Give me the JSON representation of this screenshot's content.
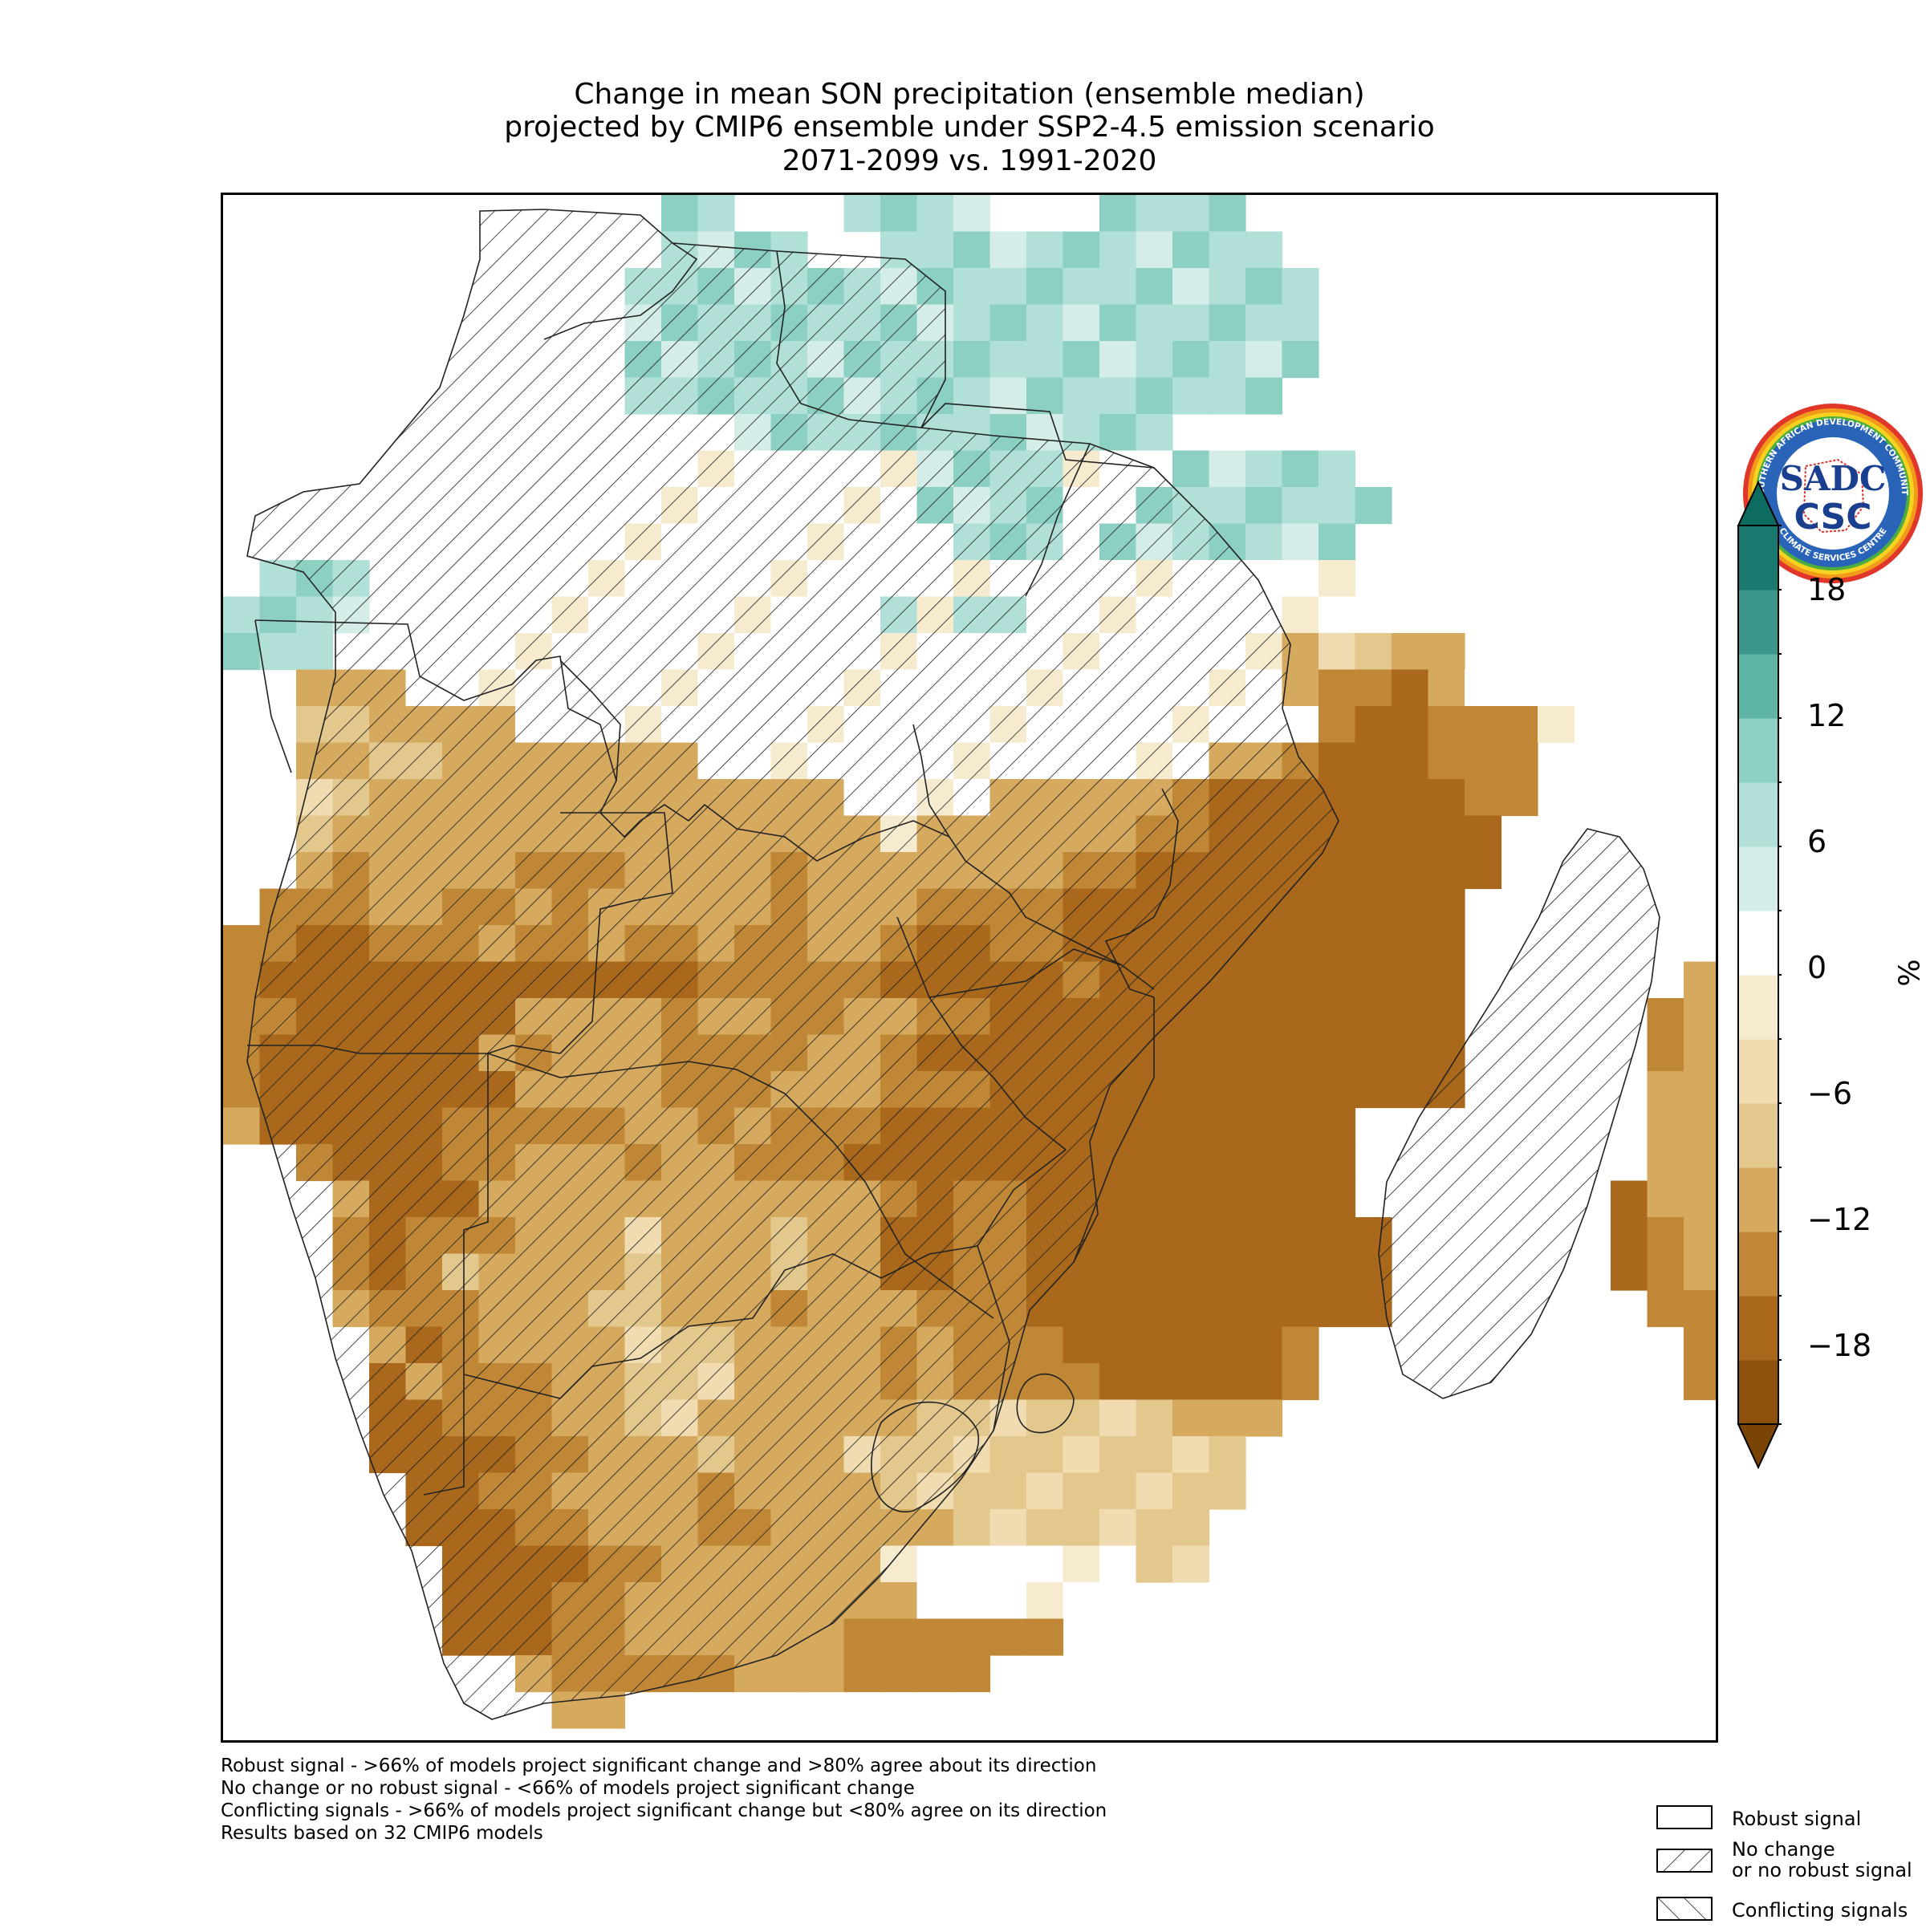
{
  "title": {
    "line1": "Change in mean SON precipitation (ensemble median)",
    "line2": "projected by CMIP6 ensemble under SSP2-4.5 emission scenario",
    "line3": "2071-2099 vs. 1991-2020"
  },
  "colorbar": {
    "unit": "%",
    "ticks": [
      "18",
      "12",
      "6",
      "0",
      "−6",
      "−12",
      "−18"
    ],
    "levels": [
      -21,
      -18,
      -15,
      -12,
      -9,
      -6,
      -3,
      3,
      6,
      9,
      12,
      15,
      18,
      21
    ],
    "colors": [
      "#8c510a",
      "#a9681c",
      "#c08836",
      "#d5aa5f",
      "#e3c88e",
      "#f0dcb0",
      "#f6ebcf",
      "#ffffff",
      "#d4ede9",
      "#b0e0d8",
      "#8bd0c3",
      "#5fb4a8",
      "#3d968b",
      "#1a7a70"
    ],
    "extend_low_color": "#7a4405",
    "extend_high_color": "#0d6b60"
  },
  "legend": {
    "robust": "Robust signal",
    "no_change_1": "No change",
    "no_change_2": "or no robust signal",
    "conflicting": "Conflicting signals"
  },
  "footnotes": {
    "line1": "Robust signal - >66% of models project significant change and >80% agree about its direction",
    "line2": "No change or no robust signal - <66% of models project significant change",
    "line3": "Conflicting signals - >66% of models project significant change but <80% agree on its direction",
    "line4": "Results based on 32 CMIP6 models"
  },
  "logo": {
    "outer_text": "SOUTHERN AFRICAN DEVELOPMENT COMMUNITY",
    "inner_text": "CLIMATE SERVICES CENTRE",
    "top_letters": "SADC",
    "bottom_letters": "CSC"
  },
  "map_data": {
    "grid_rows": [
      "............RR...RRRR...RRRR.........",
      "............RRRR..RRRRRRRRRRR.........",
      "...........RRRRRRRRRRRRRRRRRRR........",
      "...........RRRRRRRRRRRRRRRRRRR........",
      "...........RRRRRRRRRRRRRRRRRRR........",
      "...........RRRRRRRRRRRRRRRRRR.........",
      "..............RRRRRRRRRRRR............",
      "............0000000RRRR000RRRRR.......",
      "..........000000000RRRR00RRRRRRR......",
      "...........000000000RRR0RRRRRRR.......",
      ".RRR....00000000000000000000000.......",
      "RRRR..000000000000R0RR00000000000.....",
      "RRR...00000000000000000000000DEEDD....",
      "..DDD000000000000000000000000DCCBD0...",
      "..EEDDDD0000000000000000000000CBBCCC0..",
      "..DDEEDDDDDDD00000000000000DDCBBBCCC...",
      "..EEDDDDDDDDDDDDD0000DDDDDCBBBBBBBCC...",
      "..EDDDDDDDDDDDDDDD0DDDDDDCCBBBBBBBB...",
      "..DCDDDDCCCDDDDCDDDDDDDCCBBBBBBBBBB..........B.",
      ".CCCDDCCDCDDDDDCDDDCCCCBBBBBBBBBBB.........CCB.",
      "CCBBCCCDCCDCCDCCDDCBBCCBBBBBBBBBBB........BBBBC",
      "CBBBBBBBBBBBBCCCCCBBBBBCBBBBBBBBBB......DDDDBBCD",
      "CCBBBBBBDDDDCDDCCDDCCBBBBBBBBBBBBB.....CDDDEDDDC",
      "CBBBBBBDCDDDCCCCDDCBBBBBBBBBBBBBBB.....CDDEEDDCD",
      "CBBBBBBBDDDDCCCDDDCCCBBBBBBBBBBBBB.....DDDDEDDCD",
      "DBBBBBCCCCCDDCDCCCBBBBBBBBBBBBB........DDEDDDCBD",
      "..CBBBCCDDDCDDCCCBBBBBBBBBBBBBB........DDDDCCCB.",
      "...DBBBDDDDDDDDDDDCBCCBBBBBBBBB.......BDDDDCCBB.",
      "...CBCCCDDDEDDDEDDBBCCBBBBBBBBBB......BCDDDCCB..",
      "...CBCEDDDDEDDDEDDBBCCBBBBBBBBBB......BCDDDCCC..",
      "...DCCCDDDEEDDDCDDDCCCBBBBBBBBBB.......CCDDCCC..",
      "....DBCDDDDEEEDDDDCDCCCBBBBBBC..........CCCCC...",
      "....BDCCCDDEEEDDDDCDCCCCBBBBBC..........CCCC....",
      "....BBCCCDDEEDDDDDDEEEEEEEDDD..............",
      "....BBBBCCDDDEDDDEEEEEEEEEEE...............",
      ".....BBCCDDDDCDDDDEEEEEEEEEE...............",
      ".....BBBCCDDDCCDDDDDEEEEEEE................",
      "......BBBBCCDDDDDD0000000EE................",
      "......BBBCCDDDDDDDD000000..................",
      "......BBBCCDDDDDDCCCCCC....................",
      "........DCCCCCDDDCCCC......................",
      ".........DD.................................."
    ]
  }
}
